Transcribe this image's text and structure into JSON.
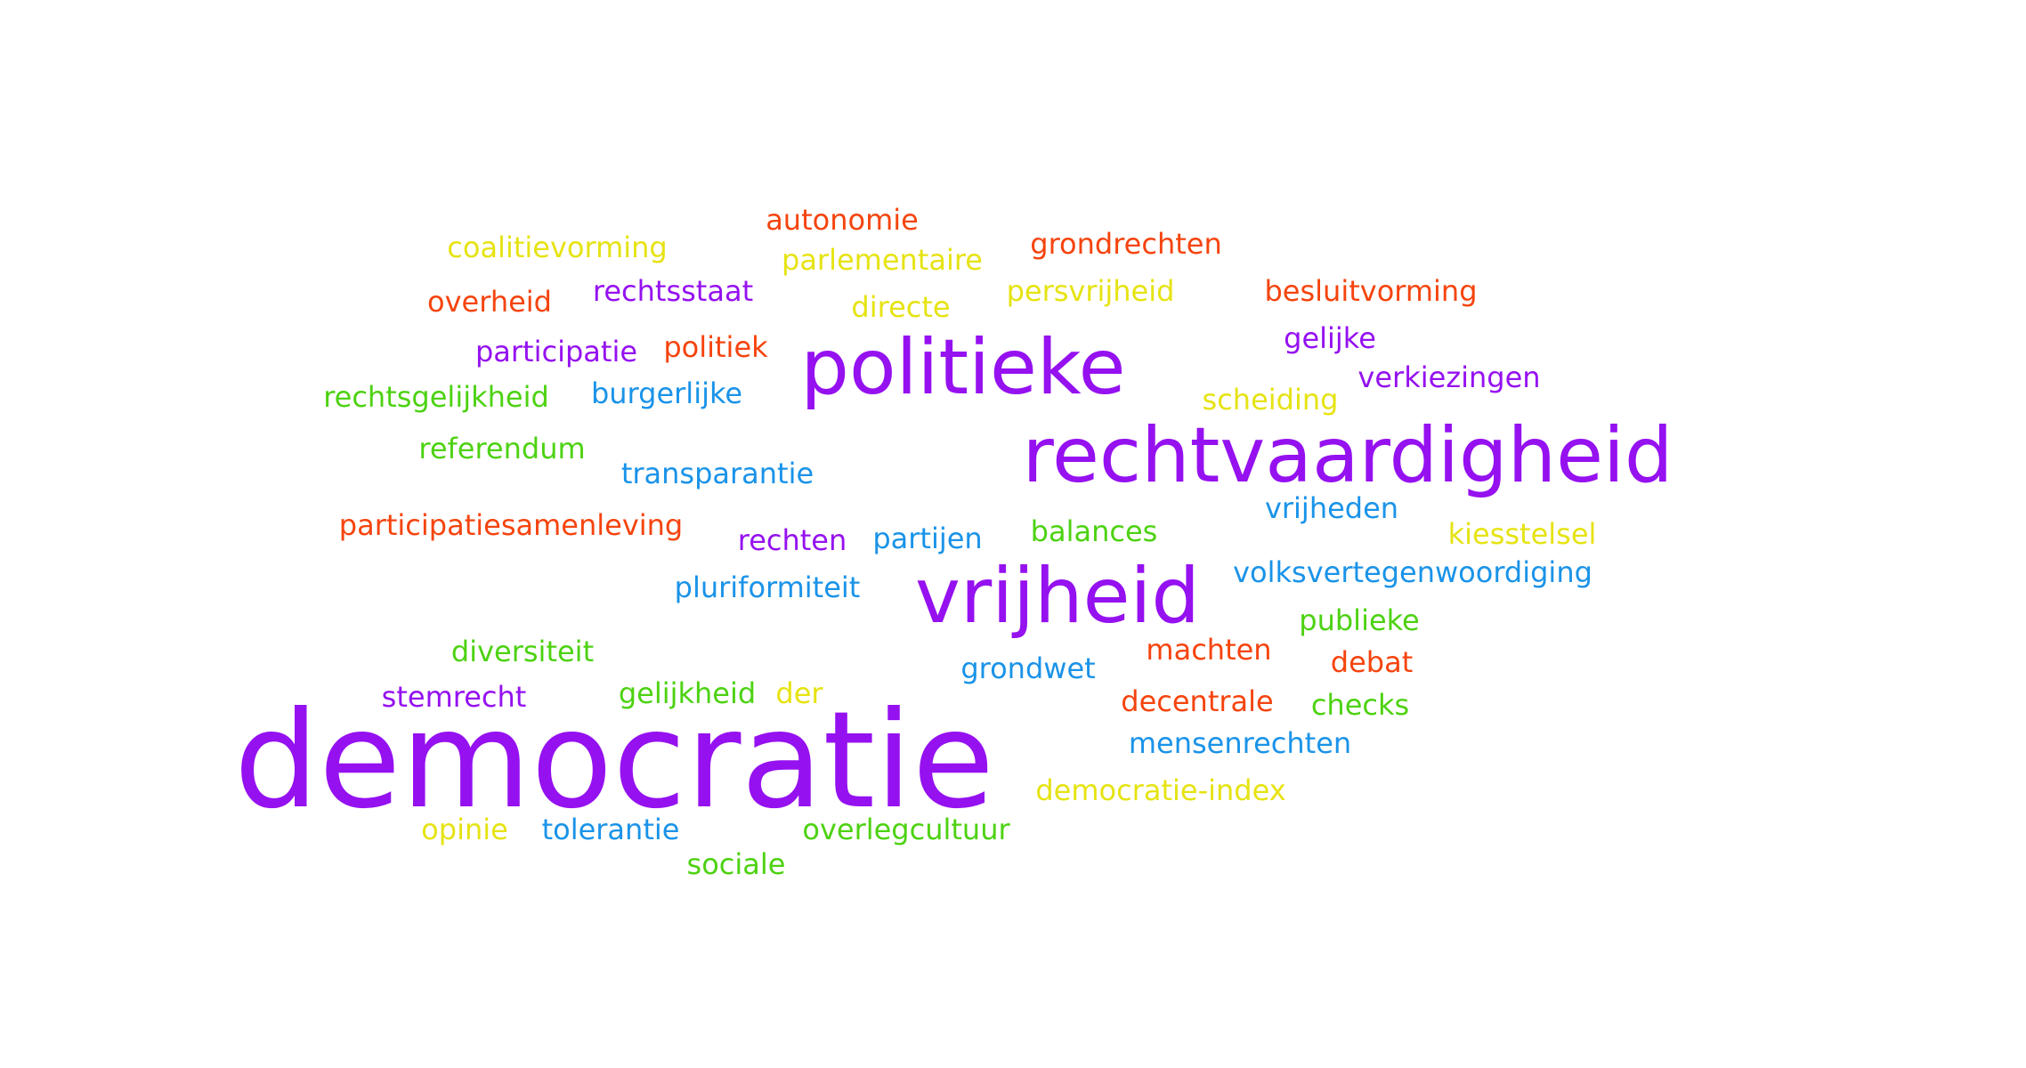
{
  "colors": {
    "purple": "#9511f0",
    "orange": "#f5440e",
    "yellow": "#e6e312",
    "green": "#4dd212",
    "blue": "#1a93e8"
  },
  "words": [
    {
      "text": "democratie",
      "color": "purple"
    },
    {
      "text": "rechtvaardigheid",
      "color": "purple"
    },
    {
      "text": "politieke",
      "color": "purple"
    },
    {
      "text": "vrijheid",
      "color": "purple"
    },
    {
      "text": "autonomie",
      "color": "orange"
    },
    {
      "text": "coalitievorming",
      "color": "yellow"
    },
    {
      "text": "parlementaire",
      "color": "yellow"
    },
    {
      "text": "grondrechten",
      "color": "orange"
    },
    {
      "text": "overheid",
      "color": "orange"
    },
    {
      "text": "rechtsstaat",
      "color": "purple"
    },
    {
      "text": "directe",
      "color": "yellow"
    },
    {
      "text": "persvrijheid",
      "color": "yellow"
    },
    {
      "text": "besluitvorming",
      "color": "orange"
    },
    {
      "text": "participatie",
      "color": "purple"
    },
    {
      "text": "politiek",
      "color": "orange"
    },
    {
      "text": "gelijke",
      "color": "purple"
    },
    {
      "text": "verkiezingen",
      "color": "purple"
    },
    {
      "text": "rechtsgelijkheid",
      "color": "green"
    },
    {
      "text": "burgerlijke",
      "color": "blue"
    },
    {
      "text": "scheiding",
      "color": "yellow"
    },
    {
      "text": "referendum",
      "color": "green"
    },
    {
      "text": "transparantie",
      "color": "blue"
    },
    {
      "text": "vrijheden",
      "color": "blue"
    },
    {
      "text": "participatiesamenleving",
      "color": "orange"
    },
    {
      "text": "rechten",
      "color": "purple"
    },
    {
      "text": "partijen",
      "color": "blue"
    },
    {
      "text": "balances",
      "color": "green"
    },
    {
      "text": "kiesstelsel",
      "color": "yellow"
    },
    {
      "text": "pluriformiteit",
      "color": "blue"
    },
    {
      "text": "volksvertegenwoordiging",
      "color": "blue"
    },
    {
      "text": "publieke",
      "color": "green"
    },
    {
      "text": "diversiteit",
      "color": "green"
    },
    {
      "text": "machten",
      "color": "orange"
    },
    {
      "text": "debat",
      "color": "orange"
    },
    {
      "text": "grondwet",
      "color": "blue"
    },
    {
      "text": "stemrecht",
      "color": "purple"
    },
    {
      "text": "gelijkheid",
      "color": "green"
    },
    {
      "text": "der",
      "color": "yellow"
    },
    {
      "text": "decentrale",
      "color": "orange"
    },
    {
      "text": "checks",
      "color": "green"
    },
    {
      "text": "mensenrechten",
      "color": "blue"
    },
    {
      "text": "democratie-index",
      "color": "yellow"
    },
    {
      "text": "opinie",
      "color": "yellow"
    },
    {
      "text": "tolerantie",
      "color": "blue"
    },
    {
      "text": "overlegcultuur",
      "color": "green"
    },
    {
      "text": "sociale",
      "color": "green"
    }
  ]
}
